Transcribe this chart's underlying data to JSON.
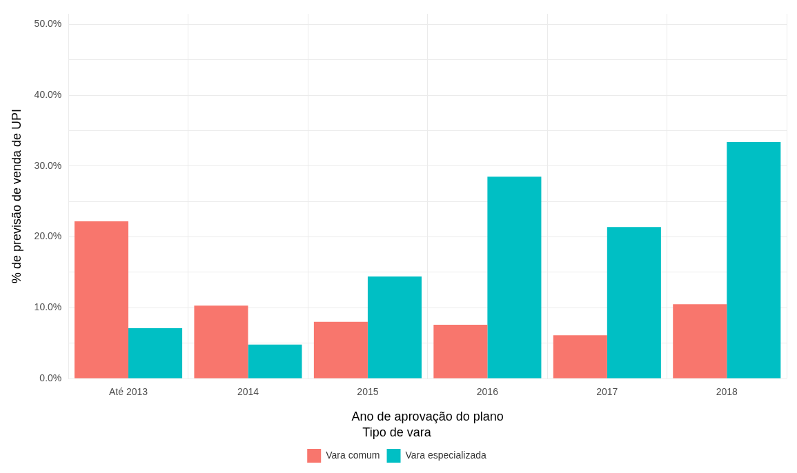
{
  "chart_data": {
    "type": "bar",
    "xlabel": "Ano de aprovação do plano",
    "ylabel": "% de previsão de venda de UPI",
    "legend_title": "Tipo de vara",
    "legend": "bottom",
    "grid": true,
    "categories": [
      "Até 2013",
      "2014",
      "2015",
      "2016",
      "2017",
      "2018"
    ],
    "series": [
      {
        "name": "Vara comum",
        "color": "#f8766d",
        "values": [
          22.2,
          10.3,
          8.0,
          7.6,
          6.1,
          10.5
        ]
      },
      {
        "name": "Vara especializada",
        "color": "#00bfc4",
        "values": [
          7.1,
          4.8,
          14.4,
          28.5,
          21.4,
          33.4
        ]
      }
    ],
    "ylim": [
      0,
      51.5
    ],
    "yticks": [
      {
        "value": 0,
        "label": "0.0%"
      },
      {
        "value": 5,
        "label": null
      },
      {
        "value": 10,
        "label": "10.0%"
      },
      {
        "value": 15,
        "label": null
      },
      {
        "value": 20,
        "label": "20.0%"
      },
      {
        "value": 25,
        "label": null
      },
      {
        "value": 30,
        "label": "30.0%"
      },
      {
        "value": 35,
        "label": null
      },
      {
        "value": 40,
        "label": "40.0%"
      },
      {
        "value": 45,
        "label": null
      },
      {
        "value": 50,
        "label": "50.0%"
      }
    ]
  }
}
